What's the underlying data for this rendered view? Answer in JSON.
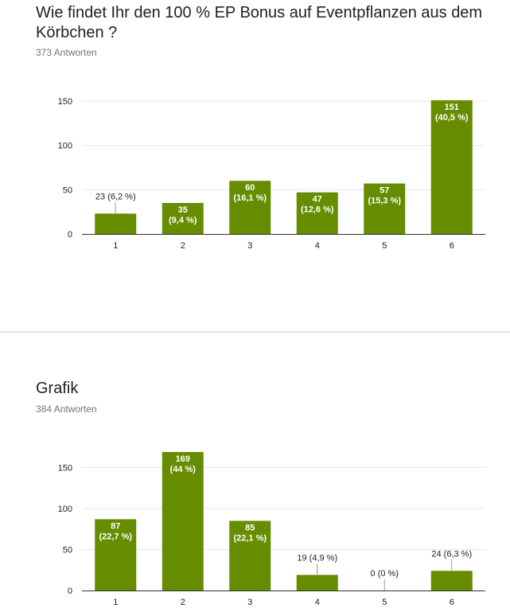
{
  "colors": {
    "bar": "#668c00",
    "grid": "#e6e6e6",
    "axis": "#333333",
    "text": "#212121"
  },
  "questions": [
    {
      "title": "Wie findet Ihr den 100 % EP Bonus auf Eventpflanzen aus dem Körbchen ?",
      "responses": "373 Antworten"
    },
    {
      "title": "Grafik",
      "responses": "384 Antworten"
    }
  ],
  "chart_data": [
    {
      "type": "bar",
      "categories": [
        "1",
        "2",
        "3",
        "4",
        "5",
        "6"
      ],
      "values": [
        23,
        35,
        60,
        47,
        57,
        151
      ],
      "labels": [
        "23 (6,2 %)",
        "35 (9,4 %)",
        "60 (16,1 %)",
        "47 (12,6 %)",
        "57 (15,3 %)",
        "151 (40,5 %)"
      ],
      "yticks": [
        0,
        50,
        100,
        150
      ],
      "ylim": [
        0,
        151
      ],
      "grid": true
    },
    {
      "type": "bar",
      "categories": [
        "1",
        "2",
        "3",
        "4",
        "5",
        "6"
      ],
      "values": [
        87,
        169,
        85,
        19,
        0,
        24
      ],
      "labels": [
        "87 (22,7 %)",
        "169 (44 %)",
        "85 (22,1 %)",
        "19 (4,9 %)",
        "0 (0 %)",
        "24 (6,3 %)"
      ],
      "yticks": [
        0,
        50,
        100,
        150
      ],
      "ylim": [
        0,
        169
      ],
      "grid": true
    }
  ]
}
